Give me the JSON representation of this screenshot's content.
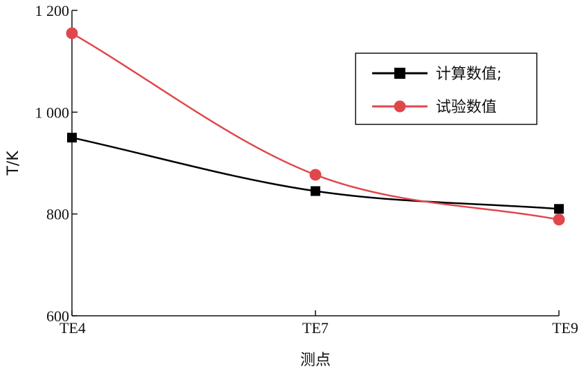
{
  "chart_data": {
    "type": "line",
    "title": "",
    "xlabel": "测点",
    "ylabel": "T/K",
    "categories": [
      "TE4",
      "TE7",
      "TE9"
    ],
    "ylim": [
      600,
      1200
    ],
    "y_ticks": [
      600,
      800,
      1000,
      1200
    ],
    "y_tick_labels": [
      "600",
      "800",
      "1 000",
      "1 200"
    ],
    "grid": false,
    "legend_position": "top-right",
    "series": [
      {
        "name": "计算数值;",
        "values": [
          950,
          845,
          810
        ],
        "color": "#000000",
        "marker": "square"
      },
      {
        "name": "试验数值",
        "values": [
          1155,
          877,
          789
        ],
        "color": "#e0474c",
        "marker": "circle"
      }
    ]
  }
}
